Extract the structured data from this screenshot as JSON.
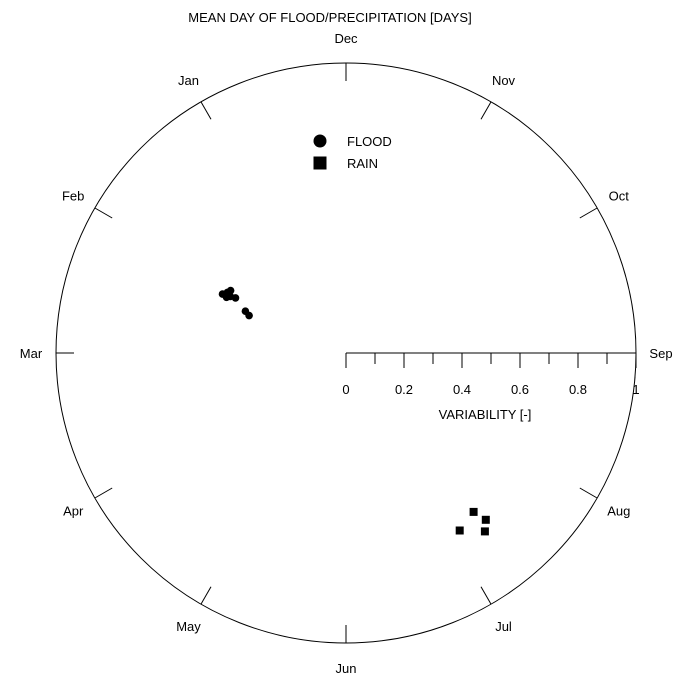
{
  "chart_data": {
    "type": "scatter",
    "title": "MEAN DAY OF FLOOD/PRECIPITATION [DAYS]",
    "months": [
      "Dec",
      "Nov",
      "Oct",
      "Sep",
      "Aug",
      "Jul",
      "Jun",
      "May",
      "Apr",
      "Mar",
      "Feb",
      "Jan"
    ],
    "radial_axis": {
      "label": "VARIABILITY [-]",
      "range": [
        0,
        1
      ],
      "major_ticks": [
        "0",
        "0.2",
        "0.4",
        "0.6",
        "0.8",
        "1"
      ]
    },
    "legend": {
      "position": "top-center",
      "entries": [
        {
          "label": "FLOOD",
          "marker": "circle"
        },
        {
          "label": "RAIN",
          "marker": "square"
        }
      ]
    },
    "series": [
      {
        "name": "FLOOD",
        "marker": "circle",
        "points": [
          {
            "x": -0.426,
            "y": 0.203
          },
          {
            "x": -0.409,
            "y": 0.209
          },
          {
            "x": -0.398,
            "y": 0.215
          },
          {
            "x": -0.412,
            "y": 0.192
          },
          {
            "x": -0.399,
            "y": 0.195
          },
          {
            "x": -0.381,
            "y": 0.19
          },
          {
            "x": -0.347,
            "y": 0.144
          },
          {
            "x": -0.334,
            "y": 0.129
          }
        ]
      },
      {
        "name": "RAIN",
        "marker": "square",
        "points": [
          {
            "x": 0.44,
            "y": -0.548
          },
          {
            "x": 0.482,
            "y": -0.575
          },
          {
            "x": 0.392,
            "y": -0.612
          },
          {
            "x": 0.479,
            "y": -0.615
          }
        ]
      }
    ]
  }
}
